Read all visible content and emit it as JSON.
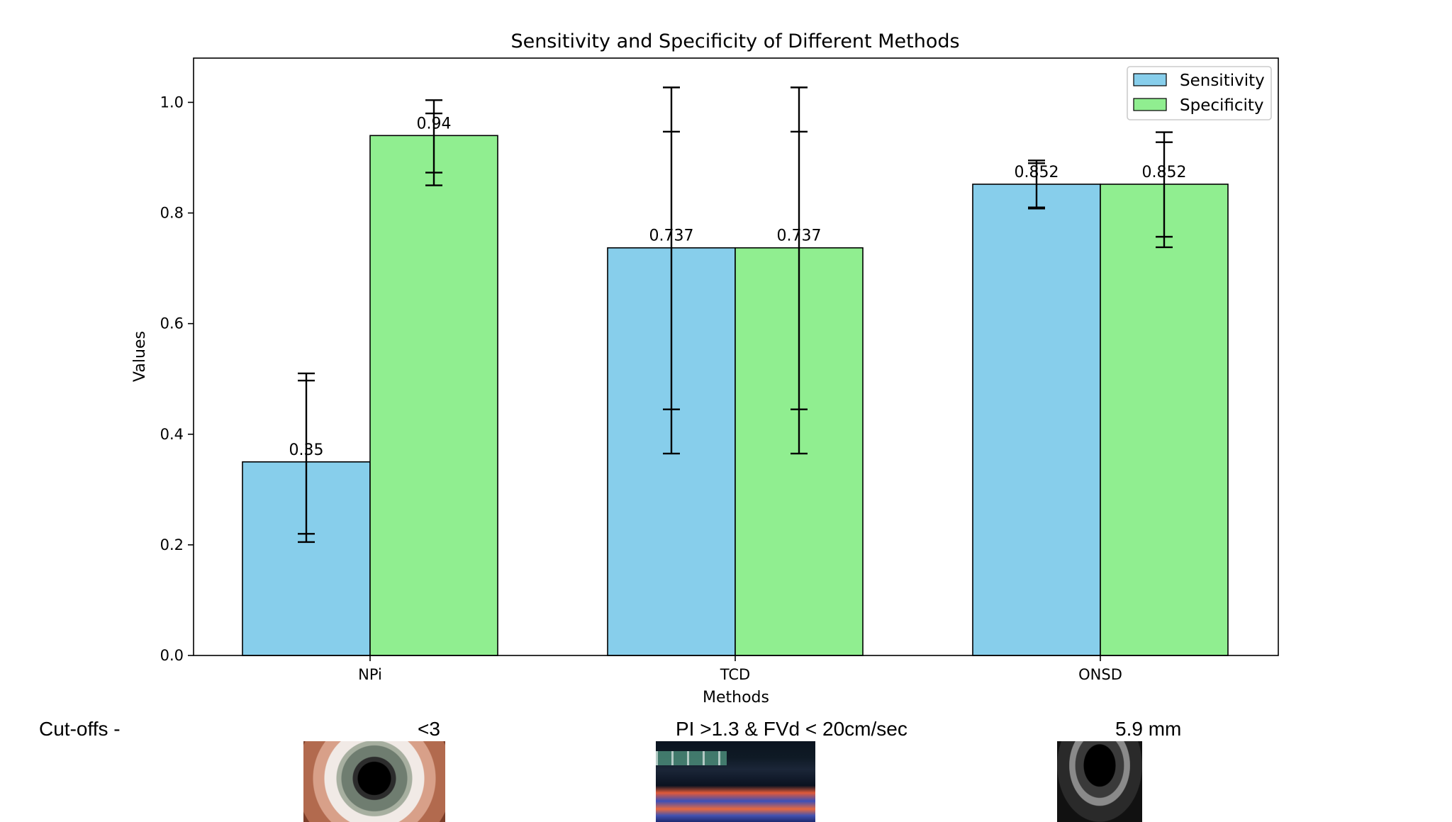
{
  "chart_data": {
    "type": "bar",
    "title": "Sensitivity and Specificity of Different Methods",
    "xlabel": "Methods",
    "ylabel": "Values",
    "categories": [
      "NPi",
      "TCD",
      "ONSD"
    ],
    "ylim": [
      0,
      1.08
    ],
    "yticks": [
      "0.0",
      "0.2",
      "0.4",
      "0.6",
      "0.8",
      "1.0"
    ],
    "series": [
      {
        "name": "Sensitivity",
        "color": "#87ceeb",
        "values": [
          0.35,
          0.737,
          0.852
        ],
        "labels": [
          "0.35",
          "0.737",
          "0.852"
        ],
        "error_low": [
          0.205,
          0.365,
          0.808
        ],
        "error_high": [
          0.51,
          1.027,
          0.895
        ],
        "inner_low": [
          0.22,
          0.445,
          0.81
        ],
        "inner_high": [
          0.497,
          0.947,
          0.89
        ]
      },
      {
        "name": "Specificity",
        "color": "#90ee90",
        "values": [
          0.94,
          0.737,
          0.852
        ],
        "labels": [
          "0.94",
          "0.737",
          "0.852"
        ],
        "error_low": [
          0.85,
          0.365,
          0.738
        ],
        "error_high": [
          1.004,
          1.027,
          0.946
        ],
        "inner_low": [
          0.873,
          0.445,
          0.757
        ],
        "inner_high": [
          0.98,
          0.947,
          0.928
        ]
      }
    ],
    "legend": "top-right",
    "grid": false
  },
  "cutoffs": {
    "label": "Cut-offs -",
    "values": [
      "<3",
      "PI >1.3 & FVd < 20cm/sec",
      "5.9 mm"
    ]
  },
  "thumbnails": [
    "eye-photo",
    "doppler-waveform",
    "ultrasound-image"
  ]
}
